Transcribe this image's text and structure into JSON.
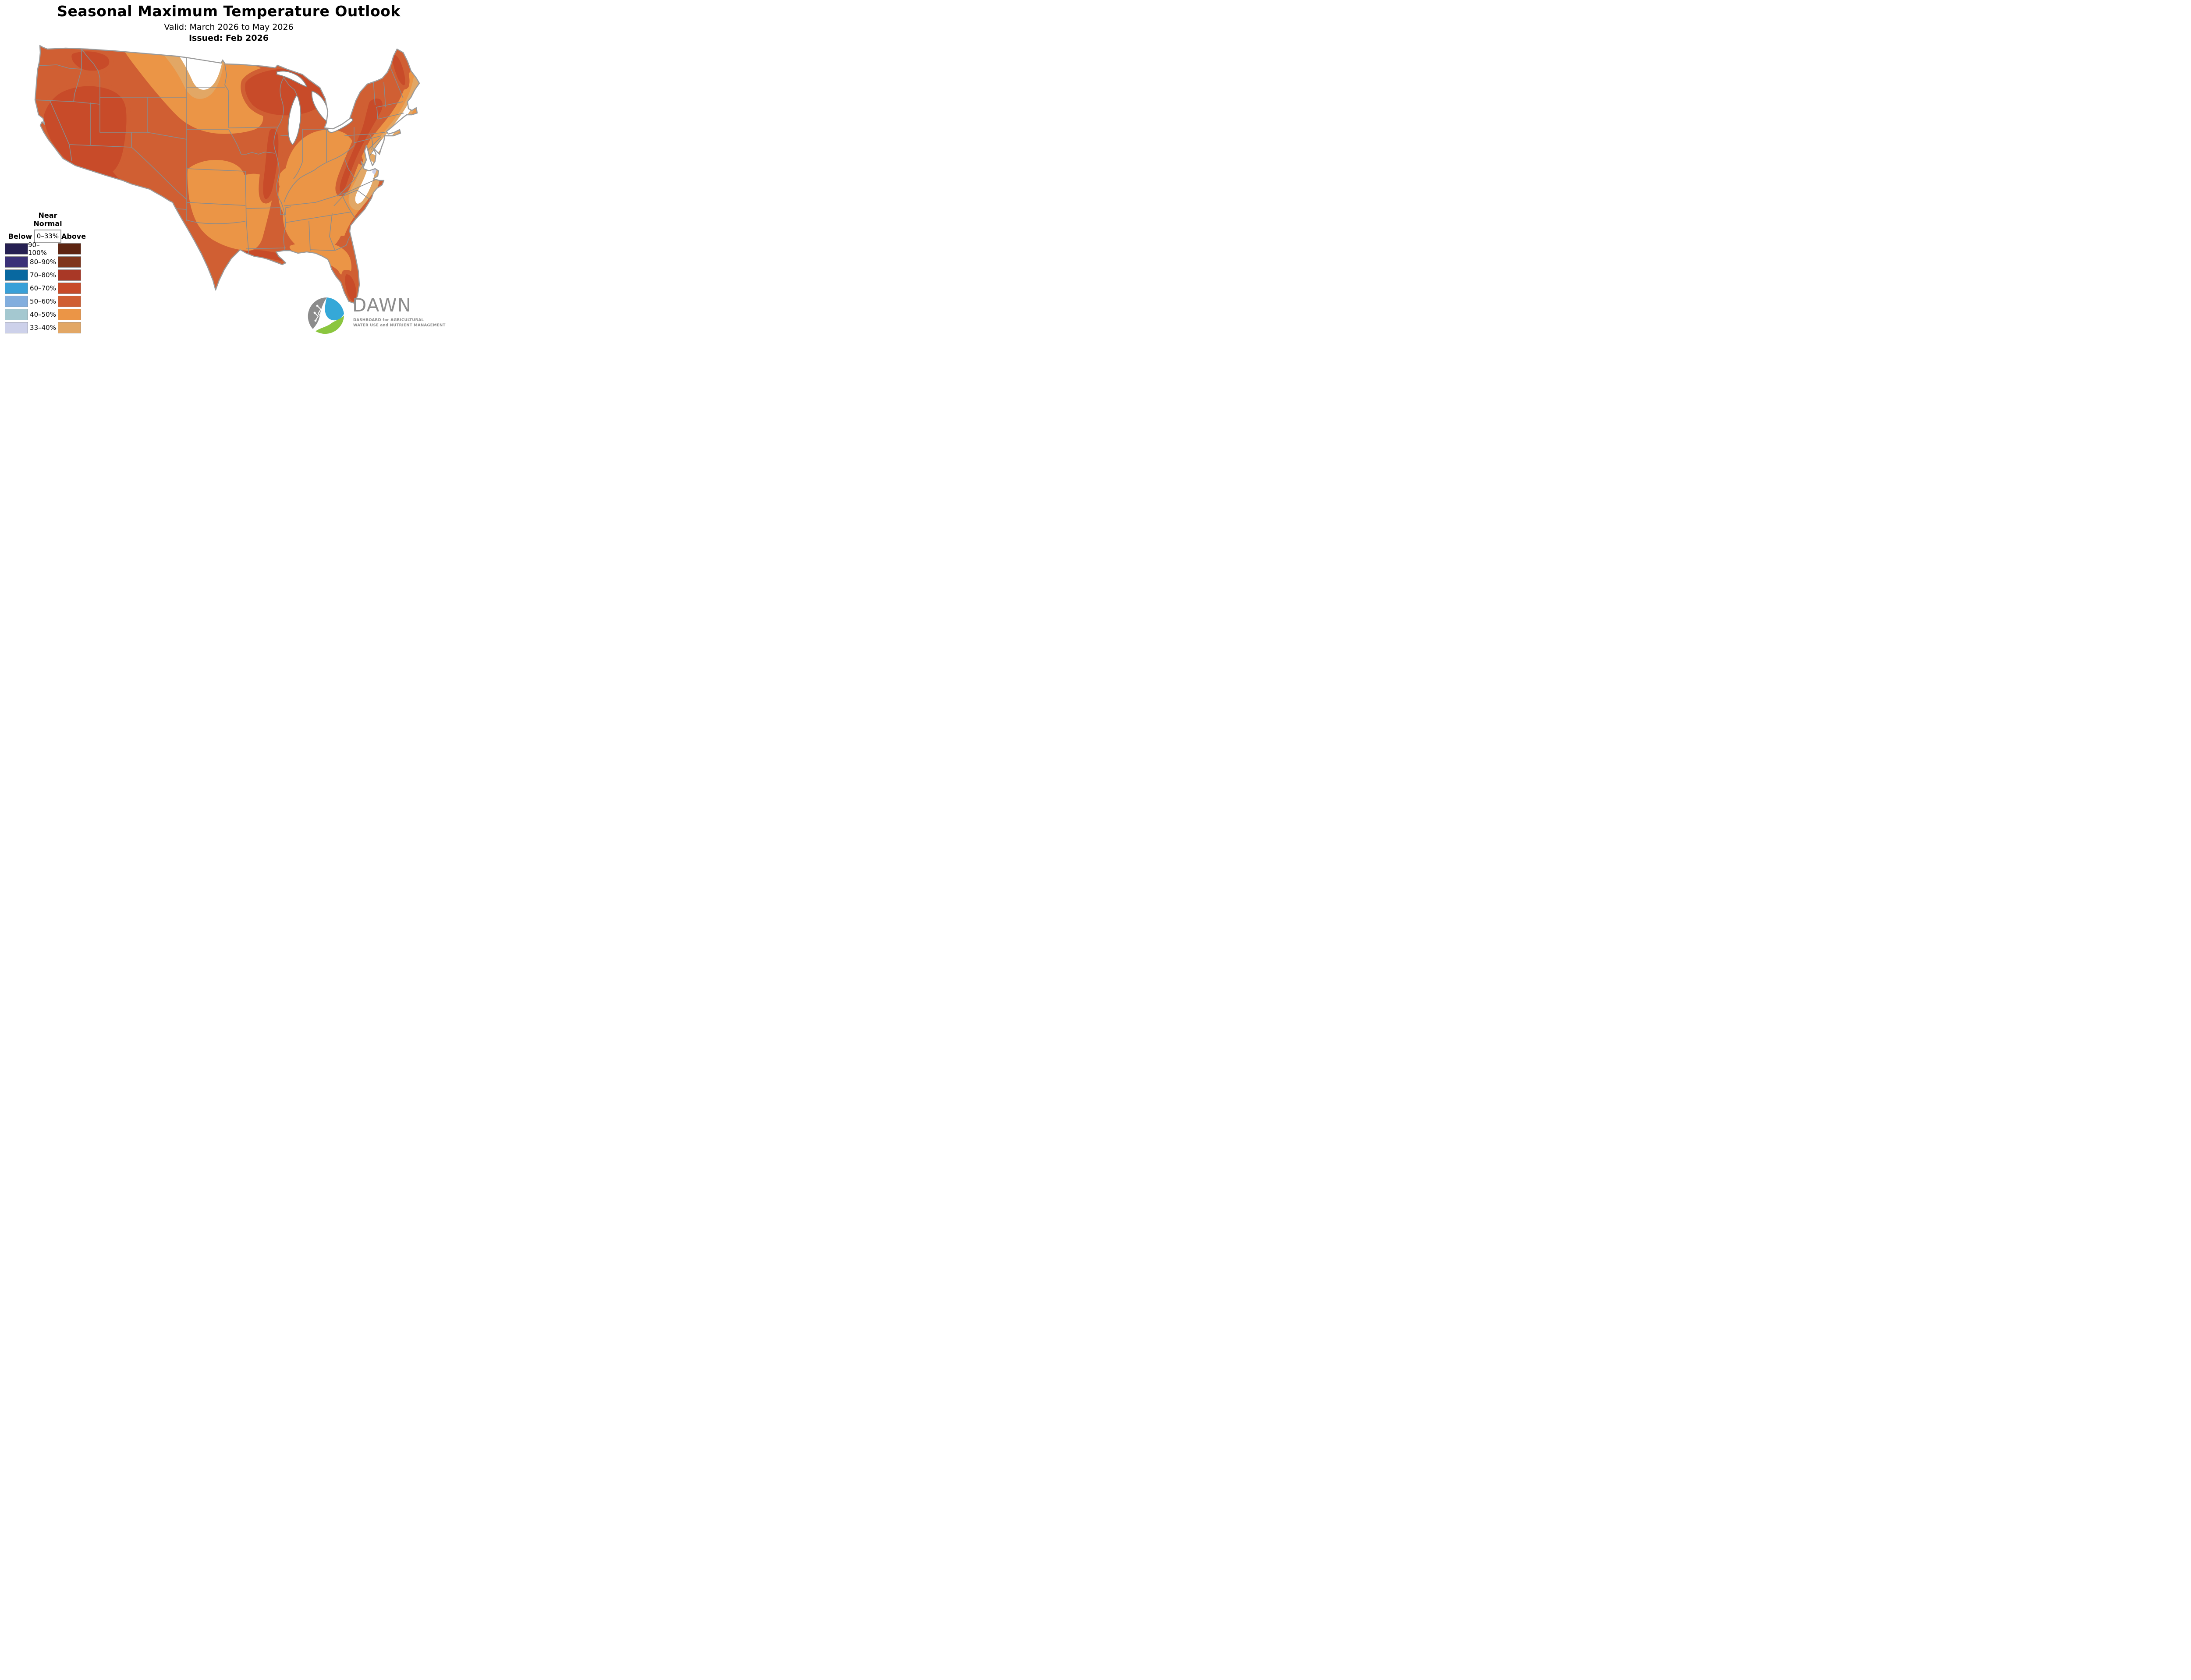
{
  "header": {
    "title": "Seasonal Maximum Temperature Outlook",
    "valid": "Valid: March 2026 to May 2026",
    "issued": "Issued: Feb 2026"
  },
  "legend": {
    "near_normal_line1": "Near",
    "near_normal_line2": "Normal",
    "near_normal_range": "0–33%",
    "below_label": "Below",
    "above_label": "Above",
    "rows": [
      {
        "range": "90–100%",
        "below": "#262052",
        "above": "#5e2512"
      },
      {
        "range": "80–90%",
        "below": "#3b3178",
        "above": "#7f361c"
      },
      {
        "range": "70–80%",
        "below": "#0868a0",
        "above": "#a93826"
      },
      {
        "range": "60–70%",
        "below": "#39a0d8",
        "above": "#c84b29"
      },
      {
        "range": "50–60%",
        "below": "#82aede",
        "above": "#d05f33"
      },
      {
        "range": "40–50%",
        "below": "#a4c8d0",
        "above": "#eb9546"
      },
      {
        "range": "33–40%",
        "below": "#cdd1ea",
        "above": "#e2a765"
      }
    ]
  },
  "map": {
    "colors": {
      "above_60_70": "#c84b29",
      "above_50_60": "#d05f33",
      "above_40_50": "#eb9546",
      "above_33_40": "#e2a765",
      "below_33_40": "#cdd1ea",
      "near_normal": "#ffffff",
      "state_border": "#8b8b8b",
      "outline": "#9a9a9a"
    },
    "regions": [
      {
        "area": "Interior West (NV, UT, AZ, NM, CO, W TX)",
        "category": "above 60–70%"
      },
      {
        "area": "Eastern WA / N Idaho",
        "category": "above 60–70%"
      },
      {
        "area": "Upper Midwest (WI, Upper MI, NE MN)",
        "category": "above 60–70%"
      },
      {
        "area": "Mid-Mississippi valley tongue (E MO to NE AR)",
        "category": "above 60–70%"
      },
      {
        "area": "Upstate NY through W PA / WV",
        "category": "above 60–70%"
      },
      {
        "area": "Northern Maine",
        "category": "above 60–70%"
      },
      {
        "area": "TX–LA Gulf Coast strip",
        "category": "above 60–70%"
      },
      {
        "area": "South Florida",
        "category": "above 60–70%"
      },
      {
        "area": "Most remaining West, Plains, NY/PA, TX, IA",
        "category": "above 50–60%"
      },
      {
        "area": "Central US (KS, OK, MO, AR), Ohio Valley, Southeast",
        "category": "above 40–50%"
      },
      {
        "area": "N North Dakota band, coastal bands NE US & Carolinas",
        "category": "above 33–40%"
      },
      {
        "area": "N central ND border, Delmarva / E VA / E NC coast, S New England coast",
        "category": "near normal (white)"
      },
      {
        "area": "New Jersey shore & Delmarva slivers",
        "category": "below 33–40%"
      }
    ]
  },
  "logo": {
    "name": "DAWN",
    "tagline_line1": "DASHBOARD for AGRICULTURAL",
    "tagline_line2": "WATER USE and NUTRIENT MANAGEMENT",
    "blue": "#35a8d8",
    "green": "#8bc63f",
    "gray": "#8c8c8c"
  }
}
